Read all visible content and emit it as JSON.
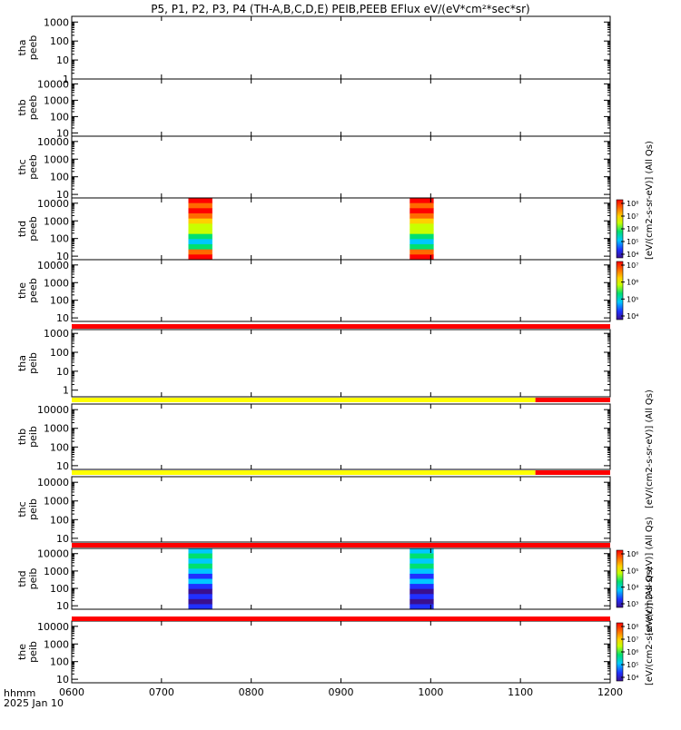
{
  "title": "P5, P1, P2, P3, P4 (TH-A,B,C,D,E) PEIB,PEEB EFlux eV/(eV*cm²*sec*sr)",
  "footer": {
    "time_label": "hhmm",
    "date_label": "2025 Jan 10"
  },
  "x_ticks": [
    "0600",
    "0700",
    "0800",
    "0900",
    "1000",
    "1100",
    "1200"
  ],
  "panels": [
    {
      "label": [
        "tha",
        "peeb"
      ],
      "yticks": [
        "1",
        "10",
        "100",
        "1000"
      ]
    },
    {
      "label": [
        "thb",
        "peeb"
      ],
      "yticks": [
        "10",
        "100",
        "1000",
        "10000"
      ]
    },
    {
      "label": [
        "thc",
        "peeb"
      ],
      "yticks": [
        "10",
        "100",
        "1000",
        "10000"
      ]
    },
    {
      "label": [
        "thd",
        "peeb"
      ],
      "yticks": [
        "10",
        "100",
        "1000",
        "10000"
      ]
    },
    {
      "label": [
        "the",
        "peeb"
      ],
      "yticks": [
        "10",
        "100",
        "1000",
        "10000"
      ]
    },
    {
      "label": [
        "tha",
        "peib"
      ],
      "yticks": [
        "1",
        "10",
        "100",
        "1000"
      ]
    },
    {
      "label": [
        "thb",
        "peib"
      ],
      "yticks": [
        "10",
        "100",
        "1000",
        "10000"
      ]
    },
    {
      "label": [
        "thc",
        "peib"
      ],
      "yticks": [
        "10",
        "100",
        "1000",
        "10000"
      ]
    },
    {
      "label": [
        "thd",
        "peib"
      ],
      "yticks": [
        "10",
        "100",
        "1000",
        "10000"
      ]
    },
    {
      "label": [
        "the",
        "peib"
      ],
      "yticks": [
        "10",
        "100",
        "1000",
        "10000"
      ]
    }
  ],
  "colorbars": [
    {
      "label": "[eV/(cm2-s-sr-eV)] (All Qs)",
      "ticks": [
        "10⁴",
        "10⁵",
        "10⁶",
        "10⁷",
        "10⁸"
      ]
    },
    {
      "label": "[eV/(cm2-s-sr-eV)] (All Qs)",
      "ticks": [
        "10⁴",
        "10⁵",
        "10⁶",
        "10⁷"
      ]
    },
    {
      "label": "[eV/(cm2-s-sr-eV)] (All Qs)",
      "ticks": [
        "10³",
        "10⁴",
        "10⁵",
        "10⁶"
      ]
    },
    {
      "label": "[eV/(cm2-s-sr-eV)] (All Qs)",
      "ticks": [
        "10⁴",
        "10⁵",
        "10⁶",
        "10⁷",
        "10⁸"
      ]
    }
  ],
  "chart_data": {
    "type": "heatmap",
    "x_range": [
      "0600",
      "1200"
    ],
    "y_scale": "log",
    "colormap": [
      "#3a0f8f",
      "#2030ff",
      "#00c8ff",
      "#00e070",
      "#c8ff00",
      "#ffd000",
      "#ff6a00",
      "#ff0000"
    ],
    "data_intervals": [
      {
        "panel": "thd peeb",
        "start": "0718",
        "end": "0734"
      },
      {
        "panel": "thd peeb",
        "start": "0946",
        "end": "1002"
      },
      {
        "panel": "thd peib",
        "start": "0718",
        "end": "0734"
      },
      {
        "panel": "thd peib",
        "start": "0946",
        "end": "1002"
      }
    ],
    "quality_bars": [
      {
        "segments": [
          {
            "start": "0600",
            "end": "1200",
            "color": "#ff0000"
          }
        ]
      },
      {
        "segments": [
          {
            "start": "0600",
            "end": "1110",
            "color": "#ffff00"
          },
          {
            "start": "1110",
            "end": "1200",
            "color": "#ff0000"
          }
        ]
      },
      {
        "segments": [
          {
            "start": "0600",
            "end": "1110",
            "color": "#ffff00"
          },
          {
            "start": "1110",
            "end": "1200",
            "color": "#ff0000"
          }
        ]
      },
      {
        "segments": [
          {
            "start": "0600",
            "end": "1200",
            "color": "#ff0000"
          }
        ]
      },
      {
        "segments": [
          {
            "start": "0600",
            "end": "1200",
            "color": "#ff0000"
          }
        ]
      }
    ]
  }
}
